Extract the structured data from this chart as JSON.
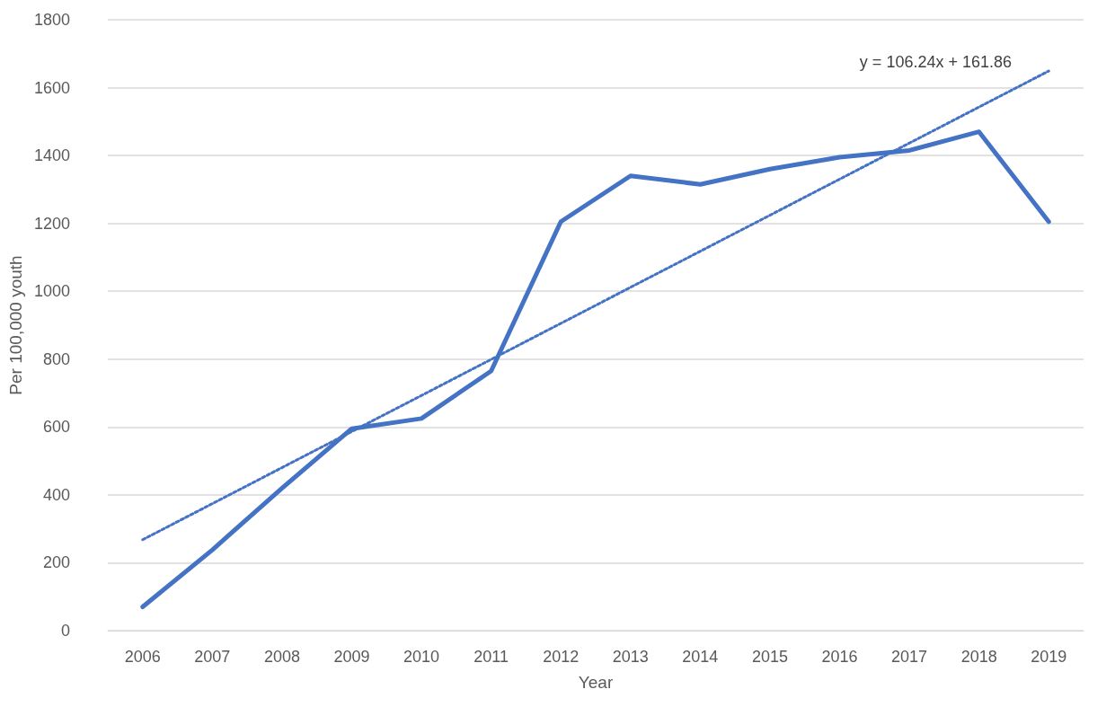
{
  "chart_data": {
    "type": "line",
    "xlabel": "Year",
    "ylabel": "Per 100,000 youth",
    "categories": [
      "2006",
      "2007",
      "2008",
      "2009",
      "2010",
      "2011",
      "2012",
      "2013",
      "2014",
      "2015",
      "2016",
      "2017",
      "2018",
      "2019"
    ],
    "series": [
      {
        "color": "#4472c4",
        "line_style": "solid",
        "values": [
          70,
          238,
          420,
          595,
          625,
          765,
          1205,
          1340,
          1315,
          1360,
          1395,
          1415,
          1470,
          1205
        ]
      },
      {
        "color": "#4472c4",
        "line_style": "dotted",
        "values": [
          268,
          null,
          null,
          null,
          null,
          null,
          null,
          null,
          null,
          null,
          null,
          null,
          null,
          1649
        ]
      }
    ],
    "annotations": [
      "y = 106.24x + 161.86"
    ],
    "ylim": [
      0,
      1800
    ],
    "yticks": [
      0,
      200,
      400,
      600,
      800,
      1000,
      1200,
      1400,
      1600,
      1800
    ],
    "grid": "y",
    "marker": "none"
  }
}
